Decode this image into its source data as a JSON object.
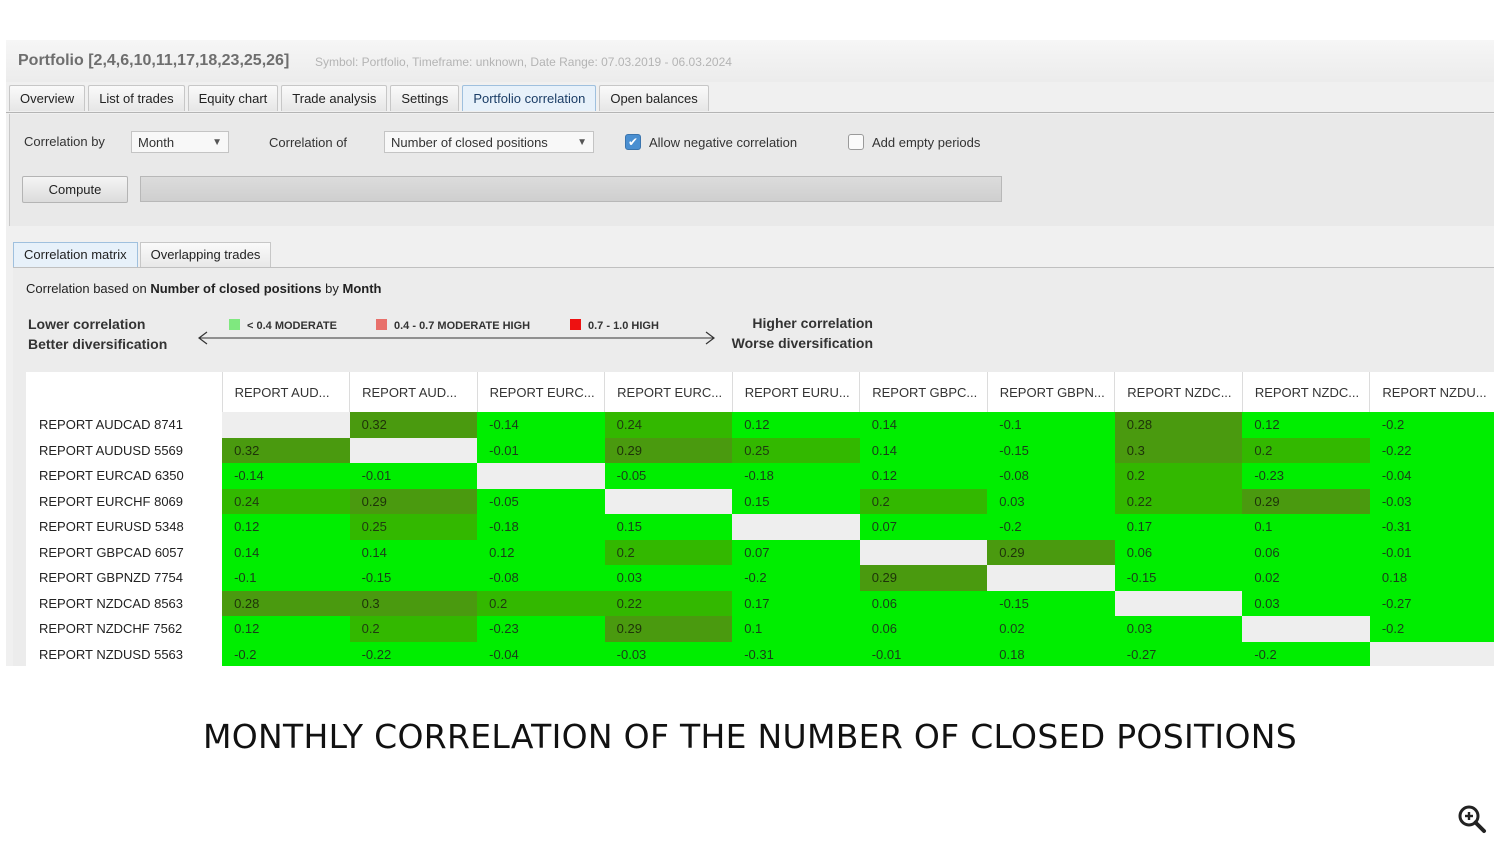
{
  "window": {
    "title": "Portfolio [2,4,6,10,11,17,18,23,25,26]",
    "meta": "Symbol: Portfolio, Timeframe: unknown, Date Range: 07.03.2019 - 06.03.2024"
  },
  "tabs": [
    "Overview",
    "List of trades",
    "Equity chart",
    "Trade analysis",
    "Settings",
    "Portfolio correlation",
    "Open balances"
  ],
  "active_tab": "Portfolio correlation",
  "settings": {
    "correlation_by_label": "Correlation by",
    "correlation_by_value": "Month",
    "correlation_of_label": "Correlation of",
    "correlation_of_value": "Number of closed positions",
    "allow_negative_label": "Allow negative correlation",
    "allow_negative_checked": true,
    "add_empty_label": "Add empty periods",
    "add_empty_checked": false,
    "compute_label": "Compute",
    "progress": 0
  },
  "subtabs": [
    "Correlation matrix",
    "Overlapping trades"
  ],
  "active_subtab": "Correlation matrix",
  "caption": {
    "prefix": "Correlation based on",
    "metric": "Number of closed positions",
    "by": "by",
    "period": "Month"
  },
  "legend": {
    "left_line1": "Lower correlation",
    "left_line2": "Better diversification",
    "right_line1": "Higher correlation",
    "right_line2": "Worse diversification",
    "items": [
      {
        "label": "< 0.4 MODERATE",
        "color": "#7fe87f"
      },
      {
        "label": "0.4 - 0.7 MODERATE HIGH",
        "color": "#e8706b"
      },
      {
        "label": "0.7 - 1.0 HIGH",
        "color": "#ee1111"
      }
    ]
  },
  "matrix": {
    "columns": [
      "REPORT AUD...",
      "REPORT AUD...",
      "REPORT EURC...",
      "REPORT EURC...",
      "REPORT EURU...",
      "REPORT GBPC...",
      "REPORT GBPN...",
      "REPORT NZDC...",
      "REPORT NZDC...",
      "REPORT NZDU..."
    ],
    "rows": [
      {
        "label": "REPORT AUDCAD 8741",
        "values": [
          null,
          0.32,
          -0.14,
          0.24,
          0.12,
          0.14,
          -0.1,
          0.28,
          0.12,
          -0.2
        ]
      },
      {
        "label": "REPORT AUDUSD 5569",
        "values": [
          0.32,
          null,
          -0.01,
          0.29,
          0.25,
          0.14,
          -0.15,
          0.3,
          0.2,
          -0.22
        ]
      },
      {
        "label": "REPORT EURCAD 6350",
        "values": [
          -0.14,
          -0.01,
          null,
          -0.05,
          -0.18,
          0.12,
          -0.08,
          0.2,
          -0.23,
          -0.04
        ]
      },
      {
        "label": "REPORT EURCHF 8069",
        "values": [
          0.24,
          0.29,
          -0.05,
          null,
          0.15,
          0.2,
          0.03,
          0.22,
          0.29,
          -0.03
        ]
      },
      {
        "label": "REPORT EURUSD 5348",
        "values": [
          0.12,
          0.25,
          -0.18,
          0.15,
          null,
          0.07,
          -0.2,
          0.17,
          0.1,
          -0.31
        ]
      },
      {
        "label": "REPORT GBPCAD 6057",
        "values": [
          0.14,
          0.14,
          0.12,
          0.2,
          0.07,
          null,
          0.29,
          0.06,
          0.06,
          -0.01
        ]
      },
      {
        "label": "REPORT GBPNZD 7754",
        "values": [
          -0.1,
          -0.15,
          -0.08,
          0.03,
          -0.2,
          0.29,
          null,
          -0.15,
          0.02,
          0.18
        ]
      },
      {
        "label": "REPORT NZDCAD 8563",
        "values": [
          0.28,
          0.3,
          0.2,
          0.22,
          0.17,
          0.06,
          -0.15,
          null,
          0.03,
          -0.27
        ]
      },
      {
        "label": "REPORT NZDCHF 7562",
        "values": [
          0.12,
          0.2,
          -0.23,
          0.29,
          0.1,
          0.06,
          0.02,
          0.03,
          null,
          -0.2
        ]
      },
      {
        "label": "REPORT NZDUSD 5563",
        "values": [
          -0.2,
          -0.22,
          -0.04,
          -0.03,
          -0.31,
          -0.01,
          0.18,
          -0.27,
          -0.2,
          null
        ]
      }
    ]
  },
  "bottom_caption": "MONTHLY CORRELATION OF THE NUMBER OF CLOSED POSITIONS",
  "icons": {
    "zoom": "zoom-in-icon",
    "check": "checkmark-icon",
    "dropdown": "chevron-down-icon"
  }
}
